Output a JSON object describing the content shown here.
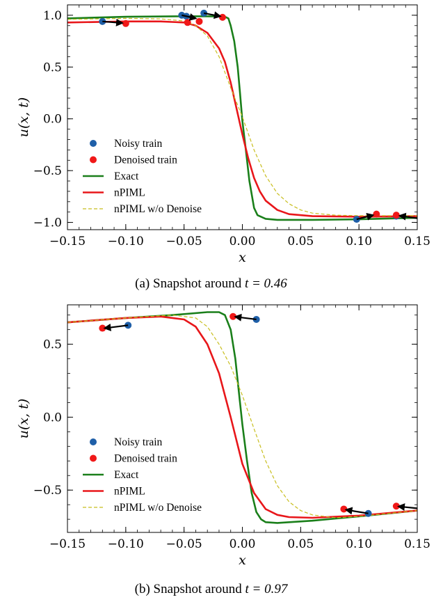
{
  "chart_data": [
    {
      "type": "line",
      "caption": "(a) Snapshot around t = 0.46",
      "caption_prefix": "(a) Snapshot around",
      "caption_math": "t = 0.46",
      "xlabel": "x",
      "ylabel": "u(x, t)",
      "xlim": [
        -0.15,
        0.15
      ],
      "ylim": [
        -1.07,
        1.1
      ],
      "xticks": [
        -0.15,
        -0.1,
        -0.05,
        0.0,
        0.05,
        0.1,
        0.15
      ],
      "xtick_labels": [
        "−0.15",
        "−0.10",
        "−0.05",
        "0.00",
        "0.05",
        "0.10",
        "0.15"
      ],
      "yticks": [
        -1.0,
        -0.5,
        0.0,
        0.5,
        1.0
      ],
      "ytick_labels": [
        "−1.0",
        "−0.5",
        "0.0",
        "0.5",
        "1.0"
      ],
      "legend_position": "lower-left",
      "legend": [
        "Noisy train",
        "Denoised train",
        "Exact",
        "nPIML",
        "nPIML w/o Denoise"
      ],
      "series": [
        {
          "name": "Exact",
          "style": "solid",
          "color": "#1a7f1a",
          "x": [
            -0.15,
            -0.1,
            -0.05,
            -0.03,
            -0.02,
            -0.015,
            -0.012,
            -0.01,
            -0.007,
            -0.004,
            -0.002,
            0.0,
            0.003,
            0.006,
            0.01,
            0.013,
            0.02,
            0.03,
            0.06,
            0.1,
            0.15
          ],
          "y": [
            0.97,
            0.985,
            0.99,
            0.99,
            0.988,
            0.985,
            0.97,
            0.9,
            0.75,
            0.5,
            0.25,
            -0.02,
            -0.3,
            -0.6,
            -0.86,
            -0.93,
            -0.965,
            -0.975,
            -0.975,
            -0.97,
            -0.955
          ]
        },
        {
          "name": "nPIML",
          "style": "solid",
          "color": "#e8161a",
          "x": [
            -0.15,
            -0.1,
            -0.07,
            -0.05,
            -0.04,
            -0.03,
            -0.02,
            -0.015,
            -0.01,
            -0.005,
            0.0,
            0.005,
            0.01,
            0.015,
            0.02,
            0.03,
            0.04,
            0.06,
            0.1,
            0.15
          ],
          "y": [
            0.93,
            0.94,
            0.94,
            0.93,
            0.9,
            0.83,
            0.68,
            0.55,
            0.35,
            0.1,
            -0.15,
            -0.38,
            -0.57,
            -0.7,
            -0.79,
            -0.88,
            -0.92,
            -0.94,
            -0.945,
            -0.94
          ]
        },
        {
          "name": "nPIML w/o Denoise",
          "style": "dashed",
          "color": "#c8be1e",
          "x": [
            -0.15,
            -0.1,
            -0.07,
            -0.05,
            -0.04,
            -0.03,
            -0.02,
            -0.01,
            0.0,
            0.01,
            0.02,
            0.03,
            0.04,
            0.05,
            0.06,
            0.08,
            0.1,
            0.15
          ],
          "y": [
            0.96,
            0.97,
            0.965,
            0.945,
            0.9,
            0.8,
            0.6,
            0.3,
            0.02,
            -0.3,
            -0.55,
            -0.72,
            -0.82,
            -0.88,
            -0.91,
            -0.93,
            -0.935,
            -0.935
          ]
        }
      ],
      "noisy_train": {
        "x": [
          -0.12,
          -0.052,
          -0.048,
          -0.033,
          0.098,
          0.132
        ],
        "y": [
          0.94,
          1.0,
          0.99,
          1.02,
          -0.97,
          -0.94
        ]
      },
      "denoised_train": {
        "x": [
          -0.1,
          -0.047,
          -0.037,
          -0.017,
          0.115,
          0.132
        ],
        "y": [
          0.92,
          0.93,
          0.94,
          0.98,
          -0.92,
          -0.93
        ]
      },
      "arrows": [
        {
          "from": [
            -0.12,
            0.94
          ],
          "to": [
            -0.103,
            0.925
          ]
        },
        {
          "from": [
            -0.052,
            1.0
          ],
          "to": [
            -0.04,
            0.97
          ]
        },
        {
          "from": [
            -0.033,
            1.02
          ],
          "to": [
            -0.019,
            0.99
          ]
        },
        {
          "from": [
            0.098,
            -0.97
          ],
          "to": [
            0.112,
            -0.93
          ]
        },
        {
          "from": [
            0.15,
            -0.96
          ],
          "to": [
            0.135,
            -0.935
          ]
        }
      ]
    },
    {
      "type": "line",
      "caption": "(b) Snapshot around t = 0.97",
      "caption_prefix": "(b) Snapshot around",
      "caption_math": "t = 0.97",
      "xlabel": "x",
      "ylabel": "u(x, t)",
      "xlim": [
        -0.15,
        0.15
      ],
      "ylim": [
        -0.79,
        0.77
      ],
      "xticks": [
        -0.15,
        -0.1,
        -0.05,
        0.0,
        0.05,
        0.1,
        0.15
      ],
      "xtick_labels": [
        "−0.15",
        "−0.10",
        "−0.05",
        "0.00",
        "0.05",
        "0.10",
        "0.15"
      ],
      "yticks": [
        -0.5,
        0.0,
        0.5
      ],
      "ytick_labels": [
        "−0.5",
        "0.0",
        "0.5"
      ],
      "legend_position": "lower-left",
      "legend": [
        "Noisy train",
        "Denoised train",
        "Exact",
        "nPIML",
        "nPIML w/o Denoise"
      ],
      "series": [
        {
          "name": "Exact",
          "style": "solid",
          "color": "#1a7f1a",
          "x": [
            -0.15,
            -0.1,
            -0.06,
            -0.03,
            -0.02,
            -0.015,
            -0.01,
            -0.006,
            -0.002,
            0.0,
            0.004,
            0.008,
            0.012,
            0.016,
            0.02,
            0.03,
            0.06,
            0.1,
            0.15
          ],
          "y": [
            0.65,
            0.68,
            0.7,
            0.72,
            0.72,
            0.7,
            0.6,
            0.4,
            0.1,
            -0.05,
            -0.3,
            -0.52,
            -0.65,
            -0.7,
            -0.72,
            -0.725,
            -0.71,
            -0.68,
            -0.64
          ]
        },
        {
          "name": "nPIML",
          "style": "solid",
          "color": "#e8161a",
          "x": [
            -0.15,
            -0.1,
            -0.07,
            -0.05,
            -0.04,
            -0.03,
            -0.02,
            -0.01,
            0.0,
            0.01,
            0.02,
            0.03,
            0.04,
            0.06,
            0.1,
            0.15
          ],
          "y": [
            0.65,
            0.68,
            0.69,
            0.67,
            0.62,
            0.5,
            0.3,
            0.0,
            -0.32,
            -0.52,
            -0.63,
            -0.67,
            -0.685,
            -0.69,
            -0.675,
            -0.64
          ]
        },
        {
          "name": "nPIML w/o Denoise",
          "style": "dashed",
          "color": "#c8be1e",
          "x": [
            -0.15,
            -0.1,
            -0.06,
            -0.04,
            -0.03,
            -0.02,
            -0.01,
            0.0,
            0.01,
            0.02,
            0.03,
            0.04,
            0.05,
            0.06,
            0.08,
            0.1,
            0.15
          ],
          "y": [
            0.65,
            0.68,
            0.7,
            0.68,
            0.62,
            0.5,
            0.35,
            0.15,
            -0.08,
            -0.3,
            -0.47,
            -0.58,
            -0.64,
            -0.67,
            -0.69,
            -0.68,
            -0.64
          ]
        }
      ],
      "noisy_train": {
        "x": [
          -0.098,
          0.012,
          0.108
        ],
        "y": [
          0.63,
          0.67,
          -0.66
        ]
      },
      "denoised_train": {
        "x": [
          -0.12,
          -0.008,
          0.087,
          0.132
        ],
        "y": [
          0.61,
          0.69,
          -0.63,
          -0.61
        ]
      },
      "arrows": [
        {
          "from": [
            -0.098,
            0.63
          ],
          "to": [
            -0.118,
            0.61
          ]
        },
        {
          "from": [
            0.012,
            0.67
          ],
          "to": [
            -0.006,
            0.688
          ]
        },
        {
          "from": [
            0.108,
            -0.66
          ],
          "to": [
            0.089,
            -0.635
          ]
        },
        {
          "from": [
            0.15,
            -0.625
          ],
          "to": [
            0.134,
            -0.612
          ]
        }
      ]
    }
  ]
}
